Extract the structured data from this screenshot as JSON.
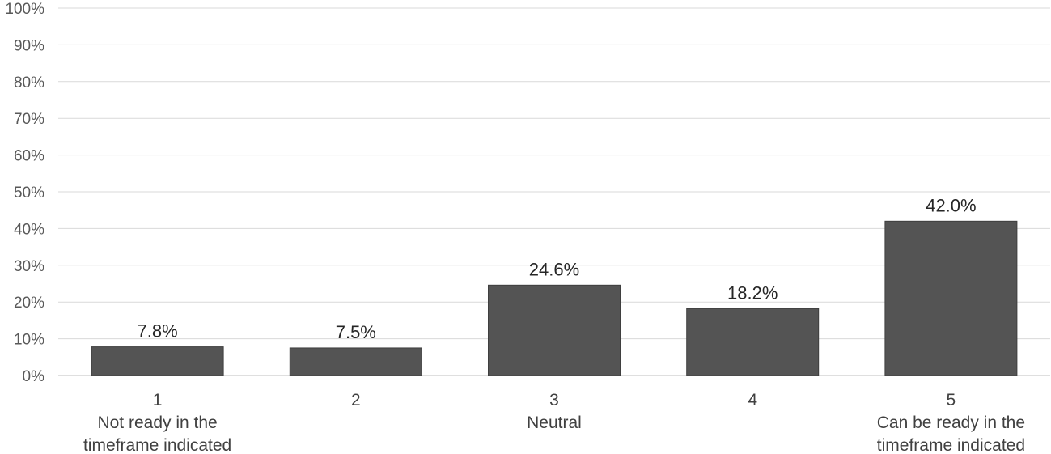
{
  "chart_data": {
    "type": "bar",
    "categories": [
      [
        "1",
        "Not ready in the",
        "timeframe indicated"
      ],
      [
        "2"
      ],
      [
        "3",
        "Neutral"
      ],
      [
        "4"
      ],
      [
        "5",
        "Can be ready in the",
        "timeframe indicated"
      ]
    ],
    "values": [
      7.8,
      7.5,
      24.6,
      18.2,
      42.0
    ],
    "data_labels": [
      "7.8%",
      "7.5%",
      "24.6%",
      "18.2%",
      "42.0%"
    ],
    "y_ticks": [
      "0%",
      "10%",
      "20%",
      "30%",
      "40%",
      "50%",
      "60%",
      "70%",
      "80%",
      "90%",
      "100%"
    ],
    "ylim": [
      0,
      100
    ],
    "grid": true,
    "bar_color": "#545454",
    "title": "",
    "xlabel": "",
    "ylabel": ""
  }
}
